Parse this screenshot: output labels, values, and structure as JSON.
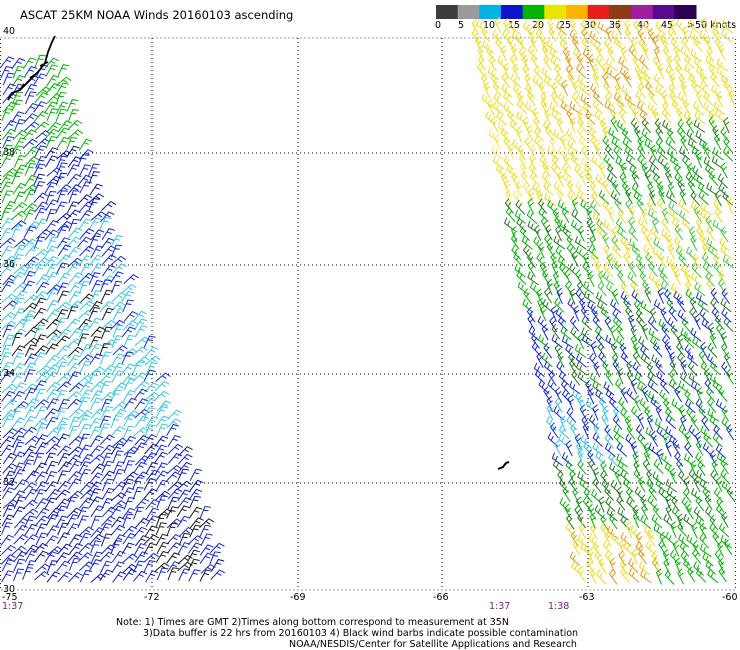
{
  "title": "ASCAT 25KM NOAA Winds 20160103 ascending",
  "color_scale": {
    "labels": [
      "0",
      "5",
      "10",
      "15",
      "20",
      "25",
      "30",
      "35",
      "40",
      "45",
      ">50 knots"
    ],
    "colors": [
      "#3c3c3c",
      "#9a9a9a",
      "#00b4e6",
      "#0a14c8",
      "#00b400",
      "#e6e600",
      "#ffb400",
      "#e61e1e",
      "#8b3c14",
      "#a01ea0",
      "#5a0a8c",
      "#2d0050"
    ]
  },
  "map": {
    "latitudes": [
      "40",
      "38",
      "36",
      "34",
      "32",
      "30"
    ],
    "longitudes": [
      "-75",
      "-72",
      "-69",
      "-66",
      "-63",
      "-60"
    ]
  },
  "times": {
    "left": "1:37",
    "mid_left": "1:37",
    "mid_right": "1:38"
  },
  "notes": {
    "line1": "Note: 1) Times are GMT 2)Times along bottom correspond to measurement at 35N",
    "line2": "3)Data buffer is 22 hrs from 20160103 4) Black wind barbs indicate possible contamination",
    "line3": "NOAA/NESDIS/Center for Satellite Applications and Research"
  },
  "swaths": [
    {
      "name": "west-swath",
      "side": "left",
      "colors": [
        "blue",
        "cyan",
        "green",
        "black"
      ]
    },
    {
      "name": "east-swath",
      "side": "right",
      "colors": [
        "yellow",
        "orange",
        "green",
        "blue",
        "cyan"
      ]
    }
  ]
}
